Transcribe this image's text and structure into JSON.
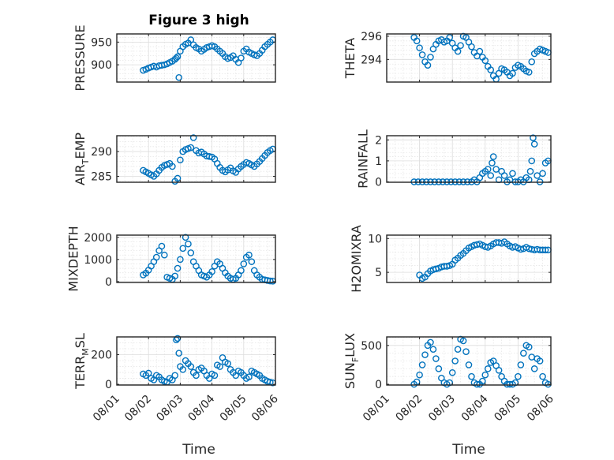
{
  "figure": {
    "title": "Figure 3 high",
    "marker_color": "#0072bd"
  },
  "chart_data": [
    {
      "type": "scatter",
      "ylabel": "PRESSURE",
      "ylim": [
        862,
        968
      ],
      "yticks": [
        900,
        950
      ],
      "ytick_labels": [
        "900",
        "950"
      ],
      "grid": true,
      "minor_grid": true,
      "x": [
        "2023-08-01T20:00",
        "2023-08-01T22:00",
        "2023-08-02T00:00",
        "2023-08-02T02:00",
        "2023-08-02T04:00",
        "2023-08-02T06:00",
        "2023-08-02T08:00",
        "2023-08-02T10:00",
        "2023-08-02T12:00",
        "2023-08-02T14:00",
        "2023-08-02T16:00",
        "2023-08-02T18:00",
        "2023-08-02T20:00",
        "2023-08-02T21:00",
        "2023-08-02T22:00",
        "2023-08-02T23:00",
        "2023-08-03T00:00",
        "2023-08-03T02:00",
        "2023-08-03T04:00",
        "2023-08-03T06:00",
        "2023-08-03T08:00",
        "2023-08-03T10:00",
        "2023-08-03T12:00",
        "2023-08-03T14:00",
        "2023-08-03T16:00",
        "2023-08-03T18:00",
        "2023-08-03T20:00",
        "2023-08-03T22:00",
        "2023-08-04T00:00",
        "2023-08-04T02:00",
        "2023-08-04T04:00",
        "2023-08-04T06:00",
        "2023-08-04T08:00",
        "2023-08-04T10:00",
        "2023-08-04T12:00",
        "2023-08-04T14:00",
        "2023-08-04T16:00",
        "2023-08-04T18:00",
        "2023-08-04T20:00",
        "2023-08-04T22:00",
        "2023-08-05T00:00",
        "2023-08-05T02:00",
        "2023-08-05T04:00",
        "2023-08-05T06:00",
        "2023-08-05T08:00",
        "2023-08-05T10:00",
        "2023-08-05T12:00",
        "2023-08-05T14:00",
        "2023-08-05T16:00",
        "2023-08-05T18:00",
        "2023-08-05T20:00",
        "2023-08-05T22:00"
      ],
      "y": [
        888,
        890,
        893,
        895,
        897,
        895,
        898,
        899,
        900,
        902,
        905,
        908,
        912,
        915,
        918,
        872,
        930,
        940,
        945,
        948,
        955,
        944,
        938,
        935,
        930,
        934,
        938,
        940,
        942,
        940,
        935,
        930,
        925,
        918,
        914,
        916,
        920,
        912,
        905,
        915,
        930,
        935,
        928,
        925,
        922,
        920,
        925,
        932,
        940,
        945,
        950,
        955
      ]
    },
    {
      "type": "scatter",
      "ylabel": "THETA",
      "ylim": [
        292.05,
        296.2
      ],
      "yticks": [
        294,
        296
      ],
      "ytick_labels": [
        "294",
        "296"
      ],
      "grid": true,
      "minor_grid": true,
      "x": [
        "2023-08-01T20:00",
        "2023-08-01T22:00",
        "2023-08-02T00:00",
        "2023-08-02T02:00",
        "2023-08-02T04:00",
        "2023-08-02T06:00",
        "2023-08-02T08:00",
        "2023-08-02T10:00",
        "2023-08-02T12:00",
        "2023-08-02T14:00",
        "2023-08-02T16:00",
        "2023-08-02T18:00",
        "2023-08-02T20:00",
        "2023-08-02T22:00",
        "2023-08-03T00:00",
        "2023-08-03T02:00",
        "2023-08-03T04:00",
        "2023-08-03T06:00",
        "2023-08-03T08:00",
        "2023-08-03T10:00",
        "2023-08-03T12:00",
        "2023-08-03T14:00",
        "2023-08-03T16:00",
        "2023-08-03T18:00",
        "2023-08-03T20:00",
        "2023-08-03T22:00",
        "2023-08-04T00:00",
        "2023-08-04T02:00",
        "2023-08-04T04:00",
        "2023-08-04T06:00",
        "2023-08-04T08:00",
        "2023-08-04T10:00",
        "2023-08-04T12:00",
        "2023-08-04T14:00",
        "2023-08-04T16:00",
        "2023-08-04T18:00",
        "2023-08-04T20:00",
        "2023-08-04T22:00",
        "2023-08-05T00:00",
        "2023-08-05T02:00",
        "2023-08-05T04:00",
        "2023-08-05T06:00",
        "2023-08-05T08:00",
        "2023-08-05T10:00",
        "2023-08-05T12:00",
        "2023-08-05T14:00",
        "2023-08-05T16:00",
        "2023-08-05T18:00",
        "2023-08-05T20:00",
        "2023-08-05T22:00"
      ],
      "y": [
        295.9,
        295.6,
        295.0,
        294.4,
        293.8,
        293.5,
        294.2,
        294.9,
        295.3,
        295.6,
        295.7,
        295.5,
        295.6,
        295.9,
        295.4,
        295.0,
        294.7,
        295.2,
        296.0,
        295.9,
        295.5,
        295.1,
        294.6,
        294.3,
        294.7,
        294.2,
        293.9,
        293.4,
        293.1,
        292.6,
        292.3,
        292.8,
        293.2,
        293.1,
        292.9,
        292.6,
        292.8,
        293.3,
        293.5,
        293.4,
        293.2,
        293.0,
        292.9,
        293.8,
        294.5,
        294.7,
        294.9,
        294.8,
        294.7,
        294.6
      ]
    },
    {
      "type": "scatter",
      "ylabel": "AIR",
      "ylabel_sub": "T",
      "ylabel_tail": "EMP",
      "ylim": [
        283.8,
        293.2
      ],
      "yticks": [
        285,
        290
      ],
      "ytick_labels": [
        "285",
        "290"
      ],
      "grid": true,
      "minor_grid": true,
      "x": [
        "2023-08-01T20:00",
        "2023-08-01T22:00",
        "2023-08-02T00:00",
        "2023-08-02T02:00",
        "2023-08-02T04:00",
        "2023-08-02T06:00",
        "2023-08-02T08:00",
        "2023-08-02T10:00",
        "2023-08-02T12:00",
        "2023-08-02T14:00",
        "2023-08-02T16:00",
        "2023-08-02T18:00",
        "2023-08-02T20:00",
        "2023-08-02T22:00",
        "2023-08-03T00:00",
        "2023-08-03T02:00",
        "2023-08-03T04:00",
        "2023-08-03T06:00",
        "2023-08-03T08:00",
        "2023-08-03T10:00",
        "2023-08-03T12:00",
        "2023-08-03T14:00",
        "2023-08-03T16:00",
        "2023-08-03T18:00",
        "2023-08-03T20:00",
        "2023-08-03T22:00",
        "2023-08-04T00:00",
        "2023-08-04T02:00",
        "2023-08-04T04:00",
        "2023-08-04T06:00",
        "2023-08-04T08:00",
        "2023-08-04T10:00",
        "2023-08-04T12:00",
        "2023-08-04T14:00",
        "2023-08-04T16:00",
        "2023-08-04T18:00",
        "2023-08-04T20:00",
        "2023-08-04T22:00",
        "2023-08-05T00:00",
        "2023-08-05T02:00",
        "2023-08-05T04:00",
        "2023-08-05T06:00",
        "2023-08-05T08:00",
        "2023-08-05T10:00",
        "2023-08-05T12:00",
        "2023-08-05T14:00",
        "2023-08-05T16:00",
        "2023-08-05T18:00",
        "2023-08-05T20:00",
        "2023-08-05T22:00"
      ],
      "y": [
        286.2,
        285.9,
        285.6,
        285.3,
        285.0,
        285.5,
        286.2,
        286.8,
        287.2,
        287.4,
        287.6,
        287.0,
        284.0,
        284.6,
        288.3,
        290.0,
        290.4,
        290.6,
        290.8,
        292.8,
        290.2,
        289.7,
        289.9,
        289.5,
        289.1,
        289.0,
        288.9,
        288.5,
        287.6,
        286.8,
        286.2,
        285.9,
        286.3,
        286.7,
        286.1,
        285.8,
        286.5,
        287.0,
        287.4,
        287.8,
        287.6,
        287.3,
        287.0,
        287.5,
        288.0,
        288.6,
        289.2,
        289.8,
        290.2,
        290.5
      ]
    },
    {
      "type": "scatter",
      "ylabel": "RAINFALL",
      "ylim": [
        -0.02,
        2.2
      ],
      "yticks": [
        0,
        1,
        2
      ],
      "ytick_labels": [
        "0",
        "1",
        "2"
      ],
      "grid": true,
      "minor_grid": true,
      "x": [
        "2023-08-01T20:00",
        "2023-08-01T23:00",
        "2023-08-02T02:00",
        "2023-08-02T05:00",
        "2023-08-02T08:00",
        "2023-08-02T11:00",
        "2023-08-02T14:00",
        "2023-08-02T17:00",
        "2023-08-02T20:00",
        "2023-08-02T23:00",
        "2023-08-03T02:00",
        "2023-08-03T05:00",
        "2023-08-03T08:00",
        "2023-08-03T11:00",
        "2023-08-03T14:00",
        "2023-08-03T16:00",
        "2023-08-03T18:00",
        "2023-08-03T20:00",
        "2023-08-03T22:00",
        "2023-08-04T00:00",
        "2023-08-04T02:00",
        "2023-08-04T04:00",
        "2023-08-04T05:00",
        "2023-08-04T06:00",
        "2023-08-04T08:00",
        "2023-08-04T10:00",
        "2023-08-04T12:00",
        "2023-08-04T14:00",
        "2023-08-04T16:00",
        "2023-08-04T18:00",
        "2023-08-04T20:00",
        "2023-08-04T22:00",
        "2023-08-05T00:00",
        "2023-08-05T02:00",
        "2023-08-05T04:00",
        "2023-08-05T06:00",
        "2023-08-05T08:00",
        "2023-08-05T09:00",
        "2023-08-05T10:00",
        "2023-08-05T11:00",
        "2023-08-05T12:00",
        "2023-08-05T14:00",
        "2023-08-05T16:00",
        "2023-08-05T18:00",
        "2023-08-05T20:00",
        "2023-08-05T22:00"
      ],
      "y": [
        0,
        0,
        0,
        0,
        0,
        0,
        0,
        0,
        0,
        0,
        0,
        0,
        0,
        0,
        0,
        0.1,
        0,
        0.2,
        0.4,
        0.5,
        0.6,
        0.3,
        0.9,
        1.2,
        0.6,
        0.1,
        0.5,
        0.3,
        0,
        0.1,
        0.4,
        0,
        0,
        0.1,
        0,
        0.2,
        0.1,
        0.5,
        1.0,
        2.1,
        1.8,
        0.3,
        0,
        0.4,
        0.9,
        1.0
      ]
    },
    {
      "type": "scatter",
      "ylabel": "MIXDEPTH",
      "ylim": [
        -40,
        2100
      ],
      "yticks": [
        0,
        1000,
        2000
      ],
      "ytick_labels": [
        "0",
        "1000",
        "2000"
      ],
      "grid": true,
      "minor_grid": true,
      "x": [
        "2023-08-01T20:00",
        "2023-08-01T22:00",
        "2023-08-02T00:00",
        "2023-08-02T02:00",
        "2023-08-02T04:00",
        "2023-08-02T06:00",
        "2023-08-02T08:00",
        "2023-08-02T10:00",
        "2023-08-02T12:00",
        "2023-08-02T14:00",
        "2023-08-02T16:00",
        "2023-08-02T18:00",
        "2023-08-02T20:00",
        "2023-08-02T22:00",
        "2023-08-03T00:00",
        "2023-08-03T02:00",
        "2023-08-03T04:00",
        "2023-08-03T06:00",
        "2023-08-03T08:00",
        "2023-08-03T10:00",
        "2023-08-03T12:00",
        "2023-08-03T14:00",
        "2023-08-03T16:00",
        "2023-08-03T18:00",
        "2023-08-03T20:00",
        "2023-08-03T22:00",
        "2023-08-04T00:00",
        "2023-08-04T02:00",
        "2023-08-04T04:00",
        "2023-08-04T06:00",
        "2023-08-04T08:00",
        "2023-08-04T10:00",
        "2023-08-04T12:00",
        "2023-08-04T14:00",
        "2023-08-04T16:00",
        "2023-08-04T18:00",
        "2023-08-04T20:00",
        "2023-08-04T22:00",
        "2023-08-05T00:00",
        "2023-08-05T02:00",
        "2023-08-05T04:00",
        "2023-08-05T06:00",
        "2023-08-05T08:00",
        "2023-08-05T10:00",
        "2023-08-05T12:00",
        "2023-08-05T14:00",
        "2023-08-05T16:00",
        "2023-08-05T18:00",
        "2023-08-05T20:00",
        "2023-08-05T22:00"
      ],
      "y": [
        300,
        380,
        520,
        700,
        900,
        1100,
        1400,
        1600,
        1200,
        200,
        150,
        100,
        250,
        600,
        1000,
        1500,
        2000,
        1700,
        1300,
        900,
        700,
        500,
        300,
        250,
        200,
        300,
        450,
        700,
        900,
        800,
        600,
        400,
        250,
        150,
        100,
        150,
        300,
        500,
        800,
        1100,
        1200,
        900,
        500,
        300,
        200,
        100,
        80,
        50,
        30,
        20
      ]
    },
    {
      "type": "scatter",
      "ylabel": "H2OMIXRA",
      "ylim": [
        3.5,
        10.5
      ],
      "yticks": [
        5,
        10
      ],
      "ytick_labels": [
        "5",
        "10"
      ],
      "grid": true,
      "minor_grid": true,
      "x": [
        "2023-08-02T00:00",
        "2023-08-02T02:00",
        "2023-08-02T04:00",
        "2023-08-02T06:00",
        "2023-08-02T08:00",
        "2023-08-02T10:00",
        "2023-08-02T12:00",
        "2023-08-02T14:00",
        "2023-08-02T16:00",
        "2023-08-02T18:00",
        "2023-08-02T20:00",
        "2023-08-02T22:00",
        "2023-08-03T00:00",
        "2023-08-03T02:00",
        "2023-08-03T04:00",
        "2023-08-03T06:00",
        "2023-08-03T08:00",
        "2023-08-03T10:00",
        "2023-08-03T12:00",
        "2023-08-03T14:00",
        "2023-08-03T16:00",
        "2023-08-03T18:00",
        "2023-08-03T20:00",
        "2023-08-03T22:00",
        "2023-08-04T00:00",
        "2023-08-04T02:00",
        "2023-08-04T04:00",
        "2023-08-04T06:00",
        "2023-08-04T08:00",
        "2023-08-04T10:00",
        "2023-08-04T12:00",
        "2023-08-04T14:00",
        "2023-08-04T16:00",
        "2023-08-04T18:00",
        "2023-08-04T20:00",
        "2023-08-04T22:00",
        "2023-08-05T00:00",
        "2023-08-05T02:00",
        "2023-08-05T04:00",
        "2023-08-05T06:00",
        "2023-08-05T08:00",
        "2023-08-05T10:00",
        "2023-08-05T12:00",
        "2023-08-05T14:00",
        "2023-08-05T16:00",
        "2023-08-05T18:00",
        "2023-08-05T20:00",
        "2023-08-05T22:00"
      ],
      "y": [
        4.6,
        4.1,
        4.3,
        4.8,
        5.2,
        5.4,
        5.5,
        5.6,
        5.8,
        5.9,
        5.9,
        6.0,
        6.2,
        6.8,
        7.1,
        7.5,
        7.8,
        8.2,
        8.6,
        8.8,
        9.0,
        9.1,
        9.2,
        9.0,
        8.8,
        8.7,
        8.9,
        9.2,
        9.4,
        9.4,
        9.3,
        9.5,
        9.2,
        8.9,
        8.7,
        8.8,
        8.6,
        8.4,
        8.5,
        8.7,
        8.5,
        8.4,
        8.3,
        8.4,
        8.3,
        8.3,
        8.3,
        8.3
      ]
    },
    {
      "type": "scatter",
      "ylabel": "TERR",
      "ylabel_sub": "M",
      "ylabel_tail": "SL",
      "ylim": [
        -5,
        320
      ],
      "yticks": [
        0,
        200
      ],
      "ytick_labels": [
        "0",
        "200"
      ],
      "grid": true,
      "minor_grid": true,
      "x": [
        "2023-08-01T20:00",
        "2023-08-01T22:00",
        "2023-08-02T00:00",
        "2023-08-02T02:00",
        "2023-08-02T04:00",
        "2023-08-02T06:00",
        "2023-08-02T08:00",
        "2023-08-02T10:00",
        "2023-08-02T12:00",
        "2023-08-02T14:00",
        "2023-08-02T16:00",
        "2023-08-02T18:00",
        "2023-08-02T20:00",
        "2023-08-02T21:00",
        "2023-08-02T22:00",
        "2023-08-02T23:00",
        "2023-08-03T00:00",
        "2023-08-03T02:00",
        "2023-08-03T04:00",
        "2023-08-03T06:00",
        "2023-08-03T08:00",
        "2023-08-03T10:00",
        "2023-08-03T12:00",
        "2023-08-03T14:00",
        "2023-08-03T16:00",
        "2023-08-03T18:00",
        "2023-08-03T20:00",
        "2023-08-03T22:00",
        "2023-08-04T00:00",
        "2023-08-04T02:00",
        "2023-08-04T04:00",
        "2023-08-04T06:00",
        "2023-08-04T08:00",
        "2023-08-04T10:00",
        "2023-08-04T12:00",
        "2023-08-04T14:00",
        "2023-08-04T16:00",
        "2023-08-04T18:00",
        "2023-08-04T20:00",
        "2023-08-04T22:00",
        "2023-08-05T00:00",
        "2023-08-05T02:00",
        "2023-08-05T04:00",
        "2023-08-05T06:00",
        "2023-08-05T08:00",
        "2023-08-05T10:00",
        "2023-08-05T12:00",
        "2023-08-05T14:00",
        "2023-08-05T16:00",
        "2023-08-05T18:00",
        "2023-08-05T20:00",
        "2023-08-05T22:00"
      ],
      "y": [
        70,
        60,
        75,
        40,
        30,
        60,
        50,
        30,
        20,
        15,
        40,
        30,
        60,
        300,
        310,
        210,
        120,
        100,
        160,
        140,
        120,
        80,
        60,
        100,
        110,
        90,
        60,
        40,
        70,
        60,
        130,
        120,
        180,
        150,
        140,
        100,
        80,
        60,
        90,
        80,
        60,
        40,
        50,
        90,
        80,
        70,
        60,
        40,
        30,
        20,
        15,
        10
      ]
    },
    {
      "type": "scatter",
      "ylabel": "SUN",
      "ylabel_sub": "F",
      "ylabel_tail": "LUX",
      "ylim": [
        -10,
        610
      ],
      "yticks": [
        0,
        500
      ],
      "ytick_labels": [
        "0",
        "500"
      ],
      "grid": true,
      "minor_grid": true,
      "x": [
        "2023-08-01T20:00",
        "2023-08-01T22:00",
        "2023-08-02T00:00",
        "2023-08-02T02:00",
        "2023-08-02T04:00",
        "2023-08-02T06:00",
        "2023-08-02T08:00",
        "2023-08-02T10:00",
        "2023-08-02T12:00",
        "2023-08-02T14:00",
        "2023-08-02T16:00",
        "2023-08-02T18:00",
        "2023-08-02T20:00",
        "2023-08-02T22:00",
        "2023-08-03T00:00",
        "2023-08-03T02:00",
        "2023-08-03T04:00",
        "2023-08-03T06:00",
        "2023-08-03T08:00",
        "2023-08-03T10:00",
        "2023-08-03T12:00",
        "2023-08-03T14:00",
        "2023-08-03T16:00",
        "2023-08-03T18:00",
        "2023-08-03T20:00",
        "2023-08-03T22:00",
        "2023-08-04T00:00",
        "2023-08-04T02:00",
        "2023-08-04T04:00",
        "2023-08-04T06:00",
        "2023-08-04T08:00",
        "2023-08-04T10:00",
        "2023-08-04T12:00",
        "2023-08-04T14:00",
        "2023-08-04T16:00",
        "2023-08-04T18:00",
        "2023-08-04T20:00",
        "2023-08-04T22:00",
        "2023-08-05T00:00",
        "2023-08-05T02:00",
        "2023-08-05T04:00",
        "2023-08-05T06:00",
        "2023-08-05T08:00",
        "2023-08-05T10:00",
        "2023-08-05T12:00",
        "2023-08-05T14:00",
        "2023-08-05T16:00",
        "2023-08-05T18:00",
        "2023-08-05T20:00",
        "2023-08-05T22:00"
      ],
      "y": [
        0,
        30,
        120,
        250,
        380,
        500,
        540,
        450,
        330,
        200,
        80,
        20,
        0,
        20,
        150,
        300,
        450,
        580,
        560,
        420,
        250,
        100,
        20,
        0,
        0,
        40,
        120,
        200,
        280,
        300,
        240,
        180,
        100,
        40,
        0,
        0,
        0,
        20,
        100,
        250,
        400,
        500,
        480,
        350,
        200,
        330,
        300,
        100,
        20,
        0
      ]
    }
  ],
  "x_axis": {
    "label": "Time",
    "ticks": [
      "2023-08-01T00:00",
      "2023-08-02T00:00",
      "2023-08-03T00:00",
      "2023-08-04T00:00",
      "2023-08-05T00:00",
      "2023-08-06T00:00"
    ],
    "tick_labels": [
      "08/01",
      "08/02",
      "08/03",
      "08/04",
      "08/05",
      "08/06"
    ],
    "xlim": [
      "2023-08-01T00:00",
      "2023-08-06T00:00"
    ]
  }
}
